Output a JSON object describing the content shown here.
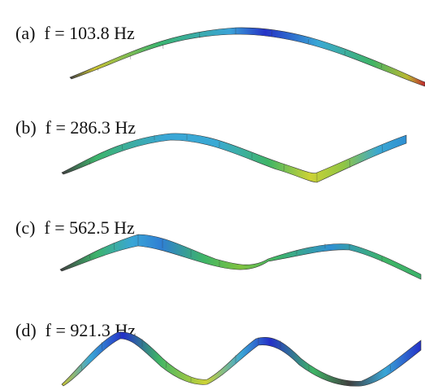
{
  "panels": [
    {
      "tag": "(a)",
      "freq": "f = 103.8 Hz"
    },
    {
      "tag": "(b)",
      "freq": "f = 286.3 Hz"
    },
    {
      "tag": "(c)",
      "freq": "f = 562.5 Hz"
    },
    {
      "tag": "(d)",
      "freq": "f = 921.3 Hz"
    }
  ],
  "colors": {
    "low": "#c0272d",
    "mid_low": "#c8c830",
    "mid": "#3cb56a",
    "mid_high": "#3aa6d6",
    "high": "#2430c8"
  }
}
